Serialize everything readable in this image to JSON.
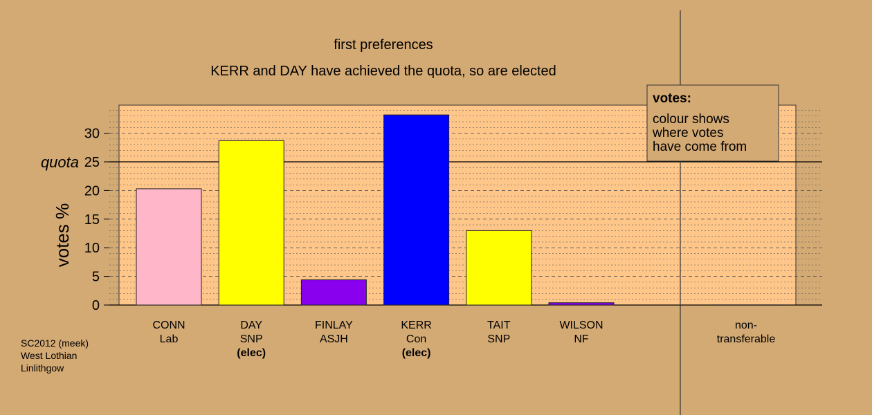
{
  "chart_data": {
    "type": "bar",
    "title": "first preferences",
    "subtitle": "KERR and DAY have achieved the quota, so are elected",
    "ylabel": "votes %",
    "ylim": [
      0,
      35
    ],
    "yticks": [
      0,
      5,
      10,
      15,
      20,
      25,
      30
    ],
    "quota": 25,
    "quota_label": "quota",
    "grid": true,
    "categories": [
      {
        "name": "CONN",
        "party": "Lab",
        "status": ""
      },
      {
        "name": "DAY",
        "party": "SNP",
        "status": "(elec)"
      },
      {
        "name": "FINLAY",
        "party": "ASJH",
        "status": ""
      },
      {
        "name": "KERR",
        "party": "Con",
        "status": "(elec)"
      },
      {
        "name": "TAIT",
        "party": "SNP",
        "status": ""
      },
      {
        "name": "WILSON",
        "party": "NF",
        "status": ""
      }
    ],
    "values": [
      20.3,
      28.7,
      4.4,
      33.2,
      13.0,
      0.4
    ],
    "colors": [
      "#ffb6c8",
      "#ffff00",
      "#8800ee",
      "#0000ff",
      "#ffff00",
      "#8800ee"
    ],
    "non_transferable": {
      "label_line1": "non-",
      "label_line2": "transferable",
      "value": 0
    },
    "legend": {
      "title": "votes:",
      "lines": [
        "colour shows",
        "where votes",
        "have come from"
      ],
      "placement": "top-right"
    }
  },
  "footer": {
    "line1": "SC2012 (meek)",
    "line2": "West Lothian",
    "line3": "Linlithgow"
  },
  "colors": {
    "background": "#d3a974",
    "plot_background": "#ffc68a"
  }
}
